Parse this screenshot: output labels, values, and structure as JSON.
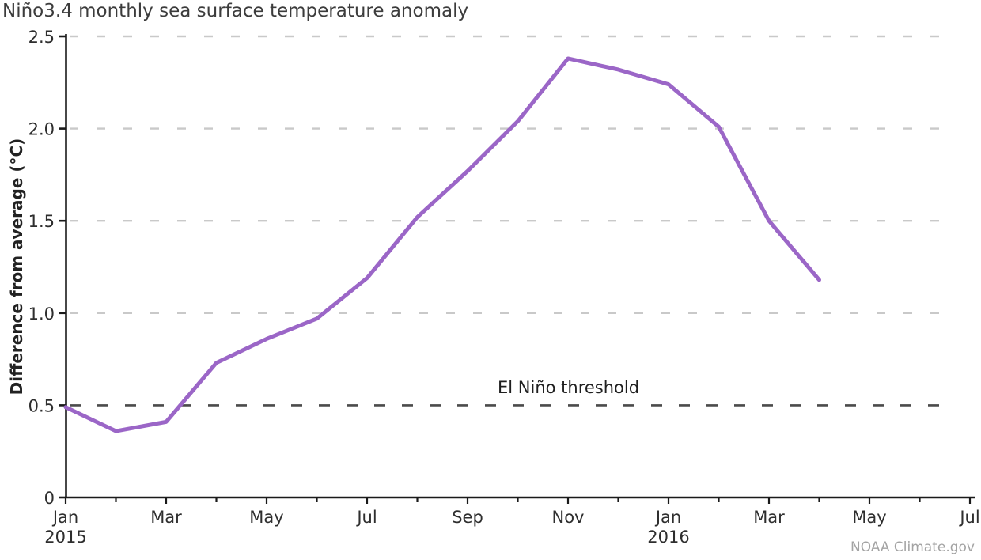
{
  "title": "Niño3.4 monthly sea surface temperature anomaly",
  "attribution": "NOAA Climate.gov",
  "chart_data": {
    "type": "line",
    "title": "Niño3.4 monthly sea surface temperature anomaly",
    "xlabel": "",
    "ylabel": "Difference from average (°C)",
    "ylim": [
      0,
      2.5
    ],
    "yticks": [
      0,
      0.5,
      1.0,
      1.5,
      2.0,
      2.5
    ],
    "ytick_labels": [
      "0",
      "0.5",
      "1.0",
      "1.5",
      "2.0",
      "2.5"
    ],
    "grid": "horizontal dashed, light gray",
    "legend_position": "none",
    "x_domain": "Jan 2015 through Jul 2016, tick every month, label every 2 months",
    "x_total_months": 19,
    "xtick_labels": [
      {
        "index": 0,
        "label": "Jan",
        "year": "2015"
      },
      {
        "index": 2,
        "label": "Mar"
      },
      {
        "index": 4,
        "label": "May"
      },
      {
        "index": 6,
        "label": "Jul"
      },
      {
        "index": 8,
        "label": "Sep"
      },
      {
        "index": 10,
        "label": "Nov"
      },
      {
        "index": 12,
        "label": "Jan",
        "year": "2016"
      },
      {
        "index": 14,
        "label": "Mar"
      },
      {
        "index": 16,
        "label": "May"
      },
      {
        "index": 18,
        "label": "Jul"
      }
    ],
    "categories": [
      "Jan 2015",
      "Feb 2015",
      "Mar 2015",
      "Apr 2015",
      "May 2015",
      "Jun 2015",
      "Jul 2015",
      "Aug 2015",
      "Sep 2015",
      "Oct 2015",
      "Nov 2015",
      "Dec 2015",
      "Jan 2016",
      "Feb 2016",
      "Mar 2016",
      "Apr 2016"
    ],
    "series": [
      {
        "name": "Niño3.4 sea surface temperature anomaly",
        "color": "#9b66c7",
        "values": [
          0.49,
          0.36,
          0.41,
          0.73,
          0.86,
          0.97,
          1.19,
          1.52,
          1.77,
          2.04,
          2.38,
          2.32,
          2.24,
          2.01,
          1.5,
          1.18
        ]
      }
    ],
    "threshold": {
      "value": 0.5,
      "label": "El Niño threshold",
      "color": "#4b4b4b",
      "style": "dashed"
    },
    "colors": {
      "line": "#9b66c7",
      "gridline": "#c9c9c9",
      "threshold_line": "#4b4b4b",
      "axis": "#1a1a1a",
      "title": "#3c3c3c",
      "attribution": "#a3a3a3"
    }
  }
}
